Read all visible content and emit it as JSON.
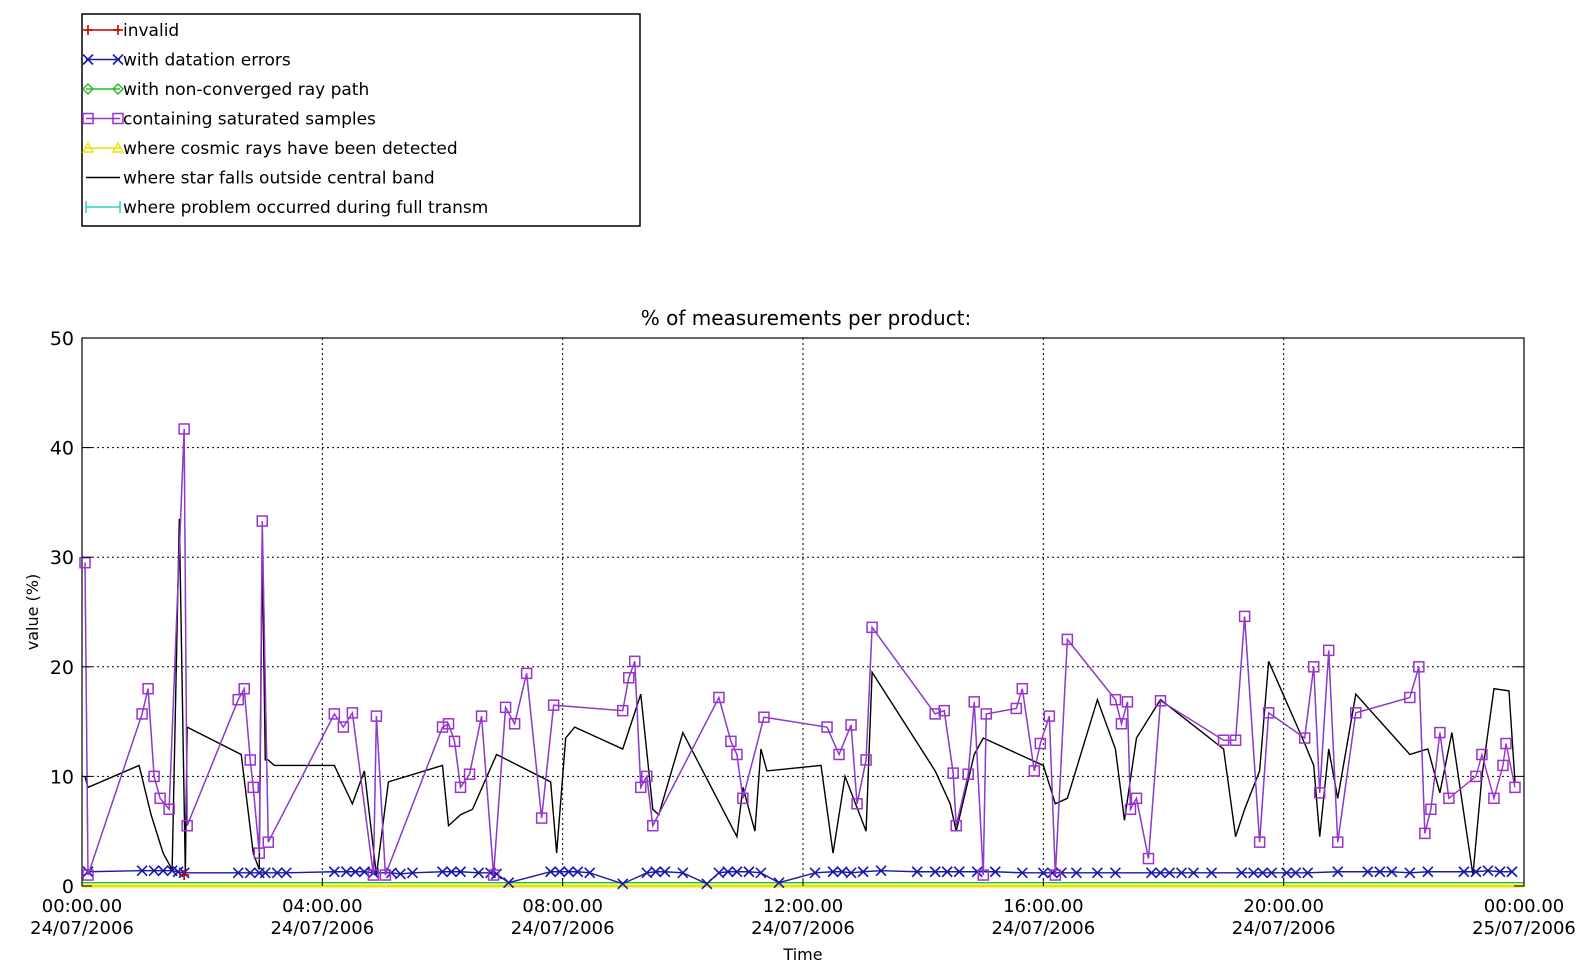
{
  "chart_data": {
    "type": "line",
    "title": "% of measurements per product:",
    "xlabel": "Time",
    "ylabel": "value (%)",
    "ylim": [
      0,
      50
    ],
    "yticks": [
      0,
      10,
      20,
      30,
      40,
      50
    ],
    "xlim_hours": [
      0,
      24
    ],
    "xticks": [
      {
        "hour": 0,
        "time": "00:00.00",
        "date": "24/07/2006"
      },
      {
        "hour": 4,
        "time": "04:00.00",
        "date": "24/07/2006"
      },
      {
        "hour": 8,
        "time": "08:00.00",
        "date": "24/07/2006"
      },
      {
        "hour": 12,
        "time": "12:00.00",
        "date": "24/07/2006"
      },
      {
        "hour": 16,
        "time": "16:00.00",
        "date": "24/07/2006"
      },
      {
        "hour": 20,
        "time": "20:00.00",
        "date": "24/07/2006"
      },
      {
        "hour": 24,
        "time": "00:00.00",
        "date": "25/07/2006"
      }
    ],
    "grid": true,
    "legend_position": "top-left",
    "series": [
      {
        "name": "invalid",
        "color": "#cc0000",
        "marker": "plus",
        "x": [
          1.7
        ],
        "y": [
          1.0
        ]
      },
      {
        "name": "with datation errors",
        "color": "#1a1aa8",
        "marker": "x",
        "x": [
          0.1,
          1.0,
          1.2,
          1.35,
          1.5,
          1.6,
          1.7,
          2.6,
          2.8,
          2.95,
          3.05,
          3.25,
          3.4,
          4.2,
          4.4,
          4.55,
          4.7,
          4.85,
          5.15,
          5.3,
          5.5,
          6.0,
          6.15,
          6.3,
          6.6,
          6.8,
          6.9,
          7.1,
          7.8,
          7.95,
          8.1,
          8.25,
          8.45,
          9.0,
          9.4,
          9.55,
          9.7,
          10.0,
          10.4,
          10.6,
          10.75,
          10.9,
          11.1,
          11.3,
          11.6,
          12.2,
          12.5,
          12.65,
          12.8,
          13.0,
          13.3,
          13.9,
          14.2,
          14.4,
          14.6,
          14.9,
          15.2,
          15.65,
          16.0,
          16.15,
          16.3,
          16.55,
          16.9,
          17.2,
          17.8,
          17.95,
          18.1,
          18.3,
          18.5,
          18.8,
          19.3,
          19.5,
          19.65,
          19.8,
          20.05,
          20.2,
          20.4,
          20.9,
          21.4,
          21.6,
          21.8,
          22.1,
          22.4,
          23.0,
          23.2,
          23.4,
          23.6,
          23.8
        ],
        "y": [
          1.3,
          1.4,
          1.4,
          1.4,
          1.4,
          1.3,
          1.2,
          1.2,
          1.2,
          1.2,
          1.2,
          1.2,
          1.2,
          1.3,
          1.3,
          1.3,
          1.3,
          1.2,
          1.2,
          1.1,
          1.2,
          1.3,
          1.3,
          1.3,
          1.2,
          1.2,
          1.1,
          0.3,
          1.3,
          1.3,
          1.3,
          1.3,
          1.2,
          0.2,
          1.2,
          1.3,
          1.3,
          1.2,
          0.2,
          1.2,
          1.3,
          1.3,
          1.3,
          1.2,
          0.3,
          1.2,
          1.3,
          1.3,
          1.2,
          1.3,
          1.4,
          1.3,
          1.3,
          1.3,
          1.3,
          1.3,
          1.3,
          1.2,
          1.2,
          1.2,
          1.2,
          1.2,
          1.2,
          1.2,
          1.2,
          1.2,
          1.2,
          1.2,
          1.2,
          1.2,
          1.2,
          1.2,
          1.2,
          1.2,
          1.2,
          1.2,
          1.2,
          1.3,
          1.3,
          1.3,
          1.3,
          1.2,
          1.3,
          1.3,
          1.3,
          1.4,
          1.3,
          1.3
        ]
      },
      {
        "name": "with non-converged ray path",
        "color": "#22bb22",
        "marker": "diamond",
        "x": [
          0,
          24
        ],
        "y": [
          0.3,
          0.3
        ]
      },
      {
        "name": "containing saturated samples",
        "color": "#9933cc",
        "marker": "square",
        "x": [
          0.05,
          0.1,
          1.0,
          1.1,
          1.2,
          1.3,
          1.45,
          1.7,
          1.75,
          2.6,
          2.7,
          2.8,
          2.85,
          2.95,
          3.0,
          3.1,
          4.2,
          4.35,
          4.5,
          4.85,
          4.9,
          5.05,
          6.0,
          6.1,
          6.2,
          6.3,
          6.45,
          6.65,
          6.85,
          7.05,
          7.2,
          7.4,
          7.65,
          7.85,
          9.0,
          9.1,
          9.2,
          9.3,
          9.4,
          9.5,
          10.6,
          10.8,
          10.9,
          11.0,
          11.35,
          12.4,
          12.6,
          12.8,
          12.9,
          13.05,
          13.15,
          14.2,
          14.35,
          14.5,
          14.55,
          14.75,
          14.85,
          15.0,
          15.05,
          15.55,
          15.65,
          15.85,
          15.95,
          16.1,
          16.2,
          16.4,
          17.2,
          17.3,
          17.4,
          17.45,
          17.55,
          17.75,
          17.95,
          19.0,
          19.2,
          19.35,
          19.6,
          19.75,
          20.35,
          20.5,
          20.6,
          20.75,
          20.9,
          21.2,
          22.1,
          22.25,
          22.35,
          22.45,
          22.6,
          22.75,
          23.2,
          23.3,
          23.5,
          23.65,
          23.7,
          23.85
        ],
        "y": [
          29.5,
          1.0,
          15.7,
          18.0,
          10.0,
          8.0,
          7.0,
          41.7,
          5.5,
          17.0,
          18.0,
          11.5,
          9.0,
          3.0,
          33.3,
          4.0,
          15.7,
          14.5,
          15.8,
          1.0,
          15.5,
          1.0,
          14.5,
          14.8,
          13.2,
          9.0,
          10.2,
          15.5,
          1.0,
          16.3,
          14.8,
          19.4,
          6.2,
          16.5,
          16.0,
          19.0,
          20.5,
          9.0,
          10.0,
          5.5,
          17.2,
          13.2,
          12.0,
          8.0,
          15.4,
          14.5,
          12.0,
          14.7,
          7.5,
          11.5,
          23.6,
          15.7,
          16.0,
          10.3,
          5.5,
          10.2,
          16.8,
          1.0,
          15.7,
          16.2,
          18.0,
          10.5,
          13.0,
          15.5,
          1.0,
          22.5,
          17.0,
          14.8,
          16.8,
          7.0,
          8.0,
          2.5,
          16.9,
          13.3,
          13.3,
          24.6,
          4.0,
          15.8,
          13.5,
          20.0,
          8.5,
          21.5,
          4.0,
          15.8,
          17.2,
          20.0,
          4.8,
          7.0,
          14.0,
          8.0,
          10.0,
          12.0,
          8.0,
          11.0,
          13.0,
          9.0
        ]
      },
      {
        "name": "where cosmic rays have been detected",
        "color": "#e6e600",
        "marker": "triangle",
        "x": [
          0,
          24
        ],
        "y": [
          0,
          0
        ]
      },
      {
        "name": "where star falls outside central band",
        "color": "#000000",
        "marker": "none",
        "x": [
          0.05,
          0.1,
          0.95,
          1.15,
          1.35,
          1.5,
          1.62,
          1.72,
          1.75,
          2.65,
          2.75,
          2.85,
          2.95,
          3.0,
          3.05,
          3.1,
          3.2,
          4.2,
          4.5,
          4.7,
          4.9,
          5.1,
          6.0,
          6.1,
          6.3,
          6.5,
          6.9,
          7.8,
          7.9,
          8.05,
          8.2,
          9.0,
          9.3,
          9.5,
          9.6,
          10.0,
          10.9,
          11.0,
          11.2,
          11.3,
          11.4,
          12.3,
          12.5,
          12.7,
          13.05,
          13.15,
          14.2,
          14.45,
          14.55,
          14.85,
          15.0,
          16.0,
          16.2,
          16.4,
          16.9,
          17.2,
          17.35,
          17.55,
          17.95,
          19.0,
          19.2,
          19.35,
          19.6,
          19.75,
          20.35,
          20.5,
          20.6,
          20.75,
          20.9,
          21.2,
          22.1,
          22.4,
          22.6,
          22.8,
          23.15,
          23.3,
          23.5,
          23.75,
          23.85
        ],
        "y": [
          10.0,
          9.0,
          11.0,
          6.5,
          3.0,
          1.5,
          33.5,
          1.2,
          14.5,
          12.0,
          7.5,
          3.0,
          1.5,
          31.0,
          11.5,
          11.5,
          11.0,
          11.0,
          7.5,
          10.5,
          1.0,
          9.5,
          11.0,
          5.5,
          6.5,
          7.0,
          12.0,
          9.5,
          3.0,
          13.5,
          14.5,
          12.5,
          17.5,
          7.0,
          6.5,
          14.0,
          4.5,
          9.0,
          5.0,
          12.5,
          10.5,
          11.0,
          3.0,
          10.0,
          5.0,
          19.5,
          10.5,
          7.5,
          5.0,
          12.0,
          13.5,
          11.0,
          7.5,
          8.0,
          17.0,
          12.5,
          6.0,
          13.5,
          17.0,
          12.5,
          4.5,
          7.0,
          10.5,
          20.5,
          13.0,
          11.0,
          4.5,
          12.5,
          8.0,
          17.5,
          12.0,
          12.5,
          8.5,
          14.0,
          1.0,
          10.0,
          18.0,
          17.8,
          9.5
        ]
      },
      {
        "name": "where problem occurred during full transm",
        "color": "#33cccc",
        "marker": "none",
        "x": [
          0.05,
          0.1,
          1.0,
          1.1,
          1.2,
          1.3,
          1.45,
          1.7,
          1.75,
          2.6,
          2.7,
          2.8,
          2.85,
          2.95,
          3.0,
          3.1,
          4.2,
          4.35,
          4.5,
          4.85,
          4.9,
          5.05,
          6.0,
          6.1,
          6.2,
          6.3,
          6.45,
          6.65,
          6.85,
          7.05,
          7.2,
          7.4,
          7.65,
          7.85,
          9.0,
          9.1,
          9.2,
          9.3,
          9.4,
          9.5,
          10.6,
          10.8,
          10.9,
          11.0,
          11.35,
          12.4,
          12.6,
          12.8,
          12.9,
          13.05,
          13.15,
          14.2,
          14.35,
          14.5,
          14.55,
          14.75,
          14.85,
          15.0,
          15.05,
          15.55,
          15.65,
          15.85,
          15.95,
          16.1,
          16.2,
          16.4,
          17.2,
          17.3,
          17.4,
          17.45,
          17.55,
          17.75,
          17.95,
          19.0,
          19.2,
          19.35,
          19.6,
          19.75,
          20.35,
          20.5,
          20.6,
          20.75,
          20.9,
          21.2,
          22.1,
          22.25,
          22.35,
          22.45,
          22.6,
          22.75
        ],
        "y": [
          29.5,
          1.0,
          15.7,
          18.0,
          10.0,
          8.0,
          7.0,
          41.7,
          5.5,
          17.0,
          18.0,
          11.5,
          9.0,
          3.0,
          33.3,
          4.0,
          15.7,
          14.5,
          15.8,
          1.0,
          15.5,
          1.0,
          14.5,
          14.8,
          13.2,
          9.0,
          10.2,
          15.5,
          1.0,
          16.3,
          14.8,
          19.4,
          6.2,
          16.5,
          16.0,
          19.0,
          20.5,
          9.0,
          10.0,
          5.5,
          17.2,
          13.2,
          12.0,
          8.0,
          15.4,
          14.5,
          12.0,
          14.7,
          7.5,
          11.5,
          23.6,
          15.7,
          16.0,
          10.3,
          5.5,
          10.2,
          16.8,
          1.0,
          15.7,
          16.2,
          18.0,
          10.5,
          13.0,
          15.5,
          1.0,
          22.5,
          17.0,
          14.8,
          16.8,
          7.0,
          8.0,
          2.5,
          16.9,
          13.3,
          13.3,
          24.6,
          4.0,
          15.8,
          13.5,
          20.0,
          8.5,
          21.5,
          4.0,
          15.8,
          17.2,
          20.0,
          4.8,
          7.0,
          14.0,
          8.0
        ]
      }
    ]
  }
}
